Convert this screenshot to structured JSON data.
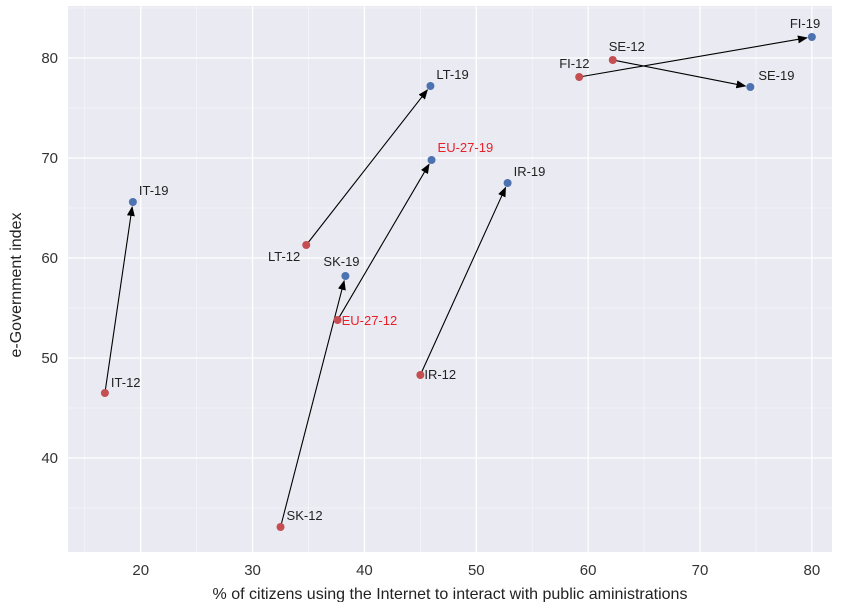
{
  "chart_data": {
    "type": "scatter",
    "title": "",
    "xlabel": "% of citizens using the Internet to interact with public aministrations",
    "ylabel": "e-Government index",
    "xlim": [
      13.5,
      81.8
    ],
    "ylim": [
      30.6,
      85.2
    ],
    "xticks": [
      20,
      30,
      40,
      50,
      60,
      70,
      80
    ],
    "yticks": [
      40,
      50,
      60,
      70,
      80
    ],
    "grid": true,
    "colors": {
      "background": "#eaeaf2",
      "grid": "#ffffff",
      "year_2012": "#c44e52",
      "year_2019": "#4c72b0",
      "eu_label": "#e8202a",
      "label": "#222222",
      "arrow": "#000000"
    },
    "points": [
      {
        "label": "IT-12",
        "x": 16.8,
        "y": 46.5,
        "series": "2012"
      },
      {
        "label": "IT-19",
        "x": 19.3,
        "y": 65.6,
        "series": "2019"
      },
      {
        "label": "LT-12",
        "x": 34.8,
        "y": 61.3,
        "series": "2012"
      },
      {
        "label": "LT-19",
        "x": 45.9,
        "y": 77.2,
        "series": "2019"
      },
      {
        "label": "SK-12",
        "x": 32.5,
        "y": 33.1,
        "series": "2012"
      },
      {
        "label": "SK-19",
        "x": 38.3,
        "y": 58.2,
        "series": "2019"
      },
      {
        "label": "EU-27-12",
        "x": 37.6,
        "y": 53.8,
        "series": "2012",
        "highlight": true
      },
      {
        "label": "EU-27-19",
        "x": 46.0,
        "y": 69.8,
        "series": "2019",
        "highlight": true
      },
      {
        "label": "IR-12",
        "x": 45.0,
        "y": 48.3,
        "series": "2012"
      },
      {
        "label": "IR-19",
        "x": 52.8,
        "y": 67.5,
        "series": "2019"
      },
      {
        "label": "FI-12",
        "x": 59.2,
        "y": 78.1,
        "series": "2012"
      },
      {
        "label": "FI-19",
        "x": 80.0,
        "y": 82.1,
        "series": "2019"
      },
      {
        "label": "SE-12",
        "x": 62.2,
        "y": 79.8,
        "series": "2012"
      },
      {
        "label": "SE-19",
        "x": 74.5,
        "y": 77.1,
        "series": "2019"
      }
    ],
    "arrows": [
      {
        "from": "IT-12",
        "to": "IT-19"
      },
      {
        "from": "LT-12",
        "to": "LT-19"
      },
      {
        "from": "SK-12",
        "to": "SK-19"
      },
      {
        "from": "EU-27-12",
        "to": "EU-27-19"
      },
      {
        "from": "IR-12",
        "to": "IR-19"
      },
      {
        "from": "FI-12",
        "to": "FI-19"
      },
      {
        "from": "SE-12",
        "to": "SE-19"
      }
    ]
  }
}
